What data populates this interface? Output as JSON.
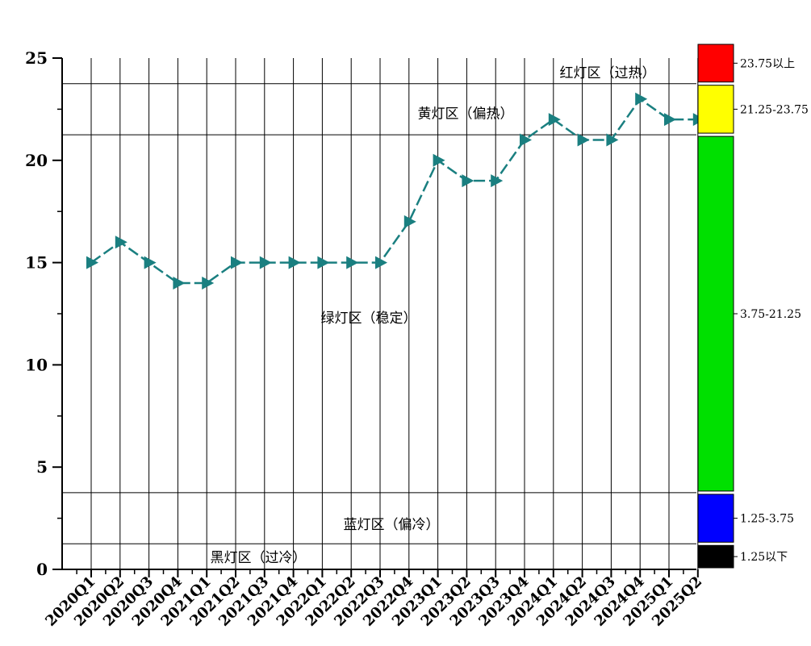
{
  "chart_data": {
    "type": "line",
    "title": "",
    "xlabel": "",
    "ylabel": "",
    "categories": [
      "2020Q1",
      "2020Q2",
      "2020Q3",
      "2020Q4",
      "2021Q1",
      "2021Q2",
      "2021Q3",
      "2021Q4",
      "2022Q1",
      "2022Q2",
      "2022Q3",
      "2022Q4",
      "2023Q1",
      "2023Q2",
      "2023Q3",
      "2023Q4",
      "2024Q1",
      "2024Q2",
      "2024Q3",
      "2024Q4",
      "2025Q1",
      "2025Q2"
    ],
    "series": [
      {
        "values": [
          15,
          16,
          15,
          14,
          14,
          15,
          15,
          15,
          15,
          15,
          15,
          17,
          20,
          19,
          19,
          21,
          22,
          21,
          21,
          23,
          22,
          22
        ],
        "color": "#1a7f80"
      }
    ],
    "ylim": [
      0,
      25
    ],
    "yticks": [
      0,
      5,
      10,
      15,
      20,
      25
    ],
    "thresholds": [
      1.25,
      3.75,
      21.25,
      23.75
    ],
    "grid": "vertical",
    "zones": [
      {
        "label": "红灯区（过热）",
        "y": 24.3
      },
      {
        "label": "黄灯区（偏热）",
        "y": 22.3
      },
      {
        "label": "绿灯区（稳定）",
        "y": 12.3
      },
      {
        "label": "蓝灯区（偏冷）",
        "y": 2.2
      },
      {
        "label": "黑灯区（过冷）",
        "y": 0.6
      }
    ],
    "legend": {
      "placement": "right",
      "items": [
        {
          "label": "23.75以上",
          "color": "#ff0000",
          "range": [
            23.75,
            25.75
          ]
        },
        {
          "label": "21.25-23.75",
          "color": "#ffff00",
          "range": [
            21.25,
            23.75
          ]
        },
        {
          "label": "3.75-21.25",
          "color": "#00e000",
          "range": [
            3.75,
            21.25
          ]
        },
        {
          "label": "1.25-3.75",
          "color": "#0000ff",
          "range": [
            1.25,
            3.75
          ]
        },
        {
          "label": "1.25以下",
          "color": "#000000",
          "range": [
            0,
            1.25
          ]
        }
      ]
    }
  }
}
